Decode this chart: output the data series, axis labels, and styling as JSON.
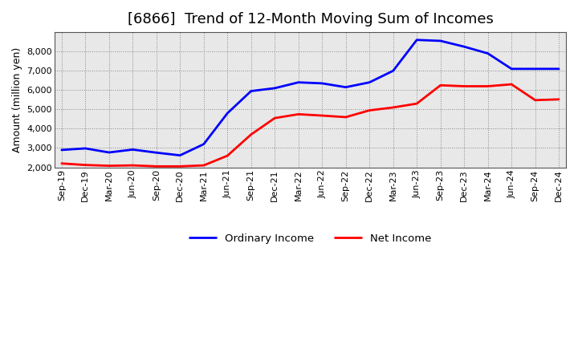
{
  "title": "[6866]  Trend of 12-Month Moving Sum of Incomes",
  "ylabel": "Amount (million yen)",
  "x_labels": [
    "Sep-19",
    "Dec-19",
    "Mar-20",
    "Jun-20",
    "Sep-20",
    "Dec-20",
    "Mar-21",
    "Jun-21",
    "Sep-21",
    "Dec-21",
    "Mar-22",
    "Jun-22",
    "Sep-22",
    "Dec-22",
    "Mar-23",
    "Jun-23",
    "Sep-23",
    "Dec-23",
    "Mar-24",
    "Jun-24",
    "Sep-24",
    "Dec-24"
  ],
  "ordinary_income": [
    2900,
    2980,
    2770,
    2920,
    2760,
    2620,
    3200,
    4800,
    5950,
    6100,
    6400,
    6350,
    6150,
    6400,
    7000,
    8600,
    8550,
    8250,
    7900,
    7100,
    7100,
    7100
  ],
  "net_income": [
    2200,
    2120,
    2080,
    2100,
    2050,
    2050,
    2100,
    2600,
    3700,
    4550,
    4750,
    4680,
    4600,
    4950,
    5100,
    5300,
    6250,
    6200,
    6200,
    6300,
    5480,
    5520
  ],
  "ordinary_color": "#0000FF",
  "net_color": "#FF0000",
  "ylim": [
    2000,
    9000
  ],
  "yticks": [
    2000,
    3000,
    4000,
    5000,
    6000,
    7000,
    8000
  ],
  "plot_bg_color": "#E8E8E8",
  "background_color": "#FFFFFF",
  "grid_color": "#888888",
  "title_fontsize": 13,
  "axis_label_fontsize": 9,
  "tick_fontsize": 8,
  "legend_fontsize": 9.5,
  "line_width": 2.0
}
